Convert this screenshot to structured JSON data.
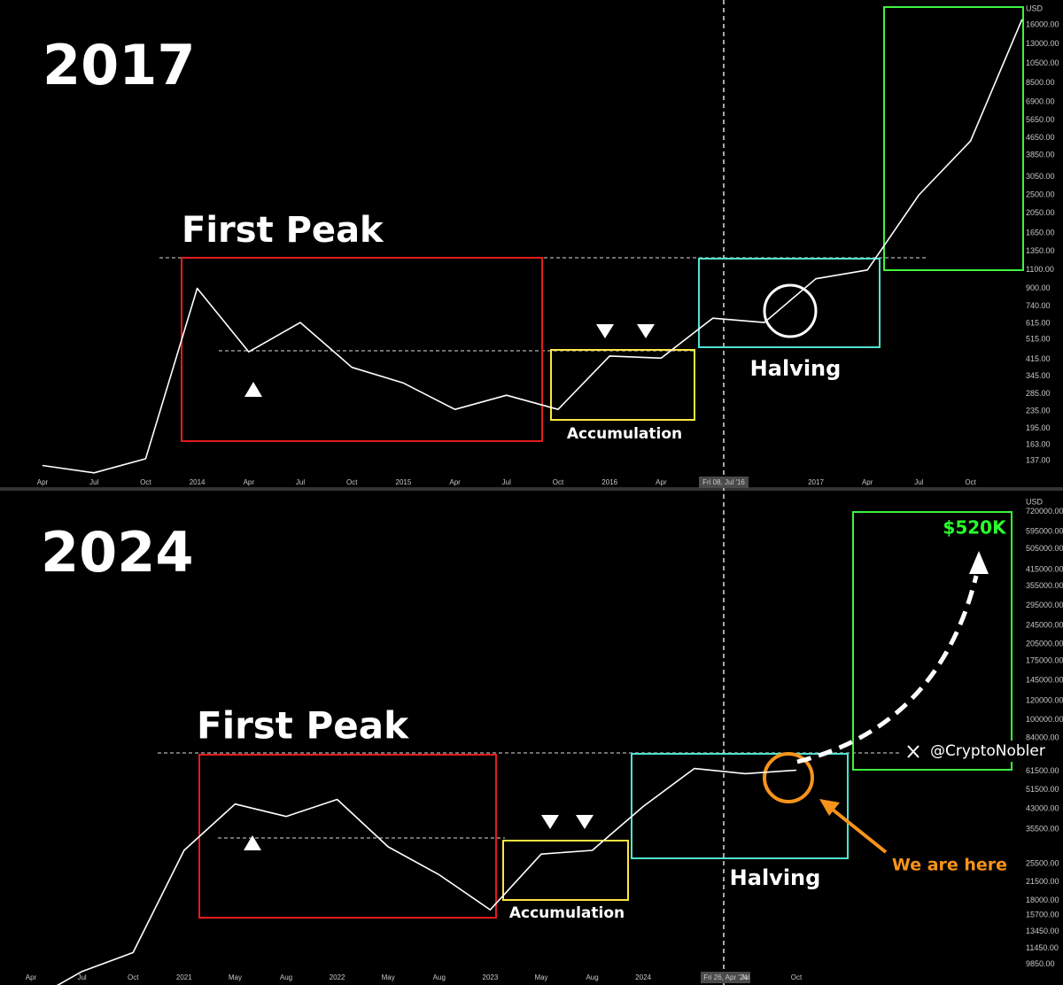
{
  "chart_data": [
    {
      "type": "line",
      "title": "2017",
      "annotations": [
        "First Peak",
        "Accumulation",
        "Halving"
      ],
      "crosshair_label": "Fri 08, Jul '16",
      "y_axis_label": "USD",
      "log_scale": true,
      "color": "#ffffff",
      "categories": [
        "Apr",
        "Jul",
        "Oct",
        "2014",
        "Apr",
        "Jul",
        "Oct",
        "2015",
        "Apr",
        "Jul",
        "Oct",
        "2016",
        "Apr",
        null,
        null,
        "2017",
        "Apr",
        "Jul",
        "Oct",
        null
      ],
      "values": [
        130,
        120,
        140,
        900,
        450,
        620,
        380,
        320,
        240,
        280,
        240,
        430,
        420,
        650,
        620,
        1000,
        1100,
        2500,
        4500,
        17000
      ],
      "ylim": [
        113,
        21000
      ],
      "yticks": [
        {
          "value": 16000,
          "label": "16000.00"
        },
        {
          "value": 13000,
          "label": "13000.00"
        },
        {
          "value": 10500,
          "label": "10500.00"
        },
        {
          "value": 8500,
          "label": "8500.00"
        },
        {
          "value": 6900,
          "label": "6900.00"
        },
        {
          "value": 5650,
          "label": "5650.00"
        },
        {
          "value": 4650,
          "label": "4650.00"
        },
        {
          "value": 3850,
          "label": "3850.00"
        },
        {
          "value": 3050,
          "label": "3050.00"
        },
        {
          "value": 2500,
          "label": "2500.00"
        },
        {
          "value": 2050,
          "label": "2050.00"
        },
        {
          "value": 1650,
          "label": "1650.00"
        },
        {
          "value": 1350,
          "label": "1350.00"
        },
        {
          "value": 1100,
          "label": "1100.00"
        },
        {
          "value": 900,
          "label": "900.00"
        },
        {
          "value": 740,
          "label": "740.00"
        },
        {
          "value": 615,
          "label": "615.00"
        },
        {
          "value": 515,
          "label": "515.00"
        },
        {
          "value": 415,
          "label": "415.00"
        },
        {
          "value": 345,
          "label": "345.00"
        },
        {
          "value": 285,
          "label": "285.00"
        },
        {
          "value": 235,
          "label": "235.00"
        },
        {
          "value": 195,
          "label": "195.00"
        },
        {
          "value": 163,
          "label": "163.00"
        },
        {
          "value": 137,
          "label": "137.00"
        }
      ]
    },
    {
      "type": "line",
      "title": "2024",
      "annotations": [
        "First Peak",
        "Accumulation",
        "Halving",
        "$520K",
        "We are here",
        "@CryptoNobler"
      ],
      "crosshair_label": "Fri 26, Apr '24",
      "y_axis_label": "USD",
      "log_scale": true,
      "color": "#ffffff",
      "categories": [
        "Apr",
        "Jul",
        "Oct",
        "2021",
        "May",
        "Aug",
        "2022",
        "May",
        "Aug",
        "2023",
        "May",
        "Aug",
        "2024",
        null,
        "Jul",
        "Oct"
      ],
      "values": [
        7000,
        9200,
        11000,
        29000,
        45000,
        40000,
        47000,
        30000,
        23000,
        16500,
        28000,
        29000,
        44000,
        63000,
        60000,
        62000
      ],
      "ylim": [
        9100,
        800000
      ],
      "yticks": [
        {
          "value": 720000,
          "label": "720000.00"
        },
        {
          "value": 595000,
          "label": "595000.00"
        },
        {
          "value": 505000,
          "label": "505000.00"
        },
        {
          "value": 415000,
          "label": "415000.00"
        },
        {
          "value": 355000,
          "label": "355000.00"
        },
        {
          "value": 295000,
          "label": "295000.00"
        },
        {
          "value": 245000,
          "label": "245000.00"
        },
        {
          "value": 205000,
          "label": "205000.00"
        },
        {
          "value": 175000,
          "label": "175000.00"
        },
        {
          "value": 145000,
          "label": "145000.00"
        },
        {
          "value": 120000,
          "label": "120000.00"
        },
        {
          "value": 100000,
          "label": "100000.00"
        },
        {
          "value": 84000,
          "label": "84000.00"
        },
        {
          "value": 61500,
          "label": "61500.00"
        },
        {
          "value": 51500,
          "label": "51500.00"
        },
        {
          "value": 43000,
          "label": "43000.00"
        },
        {
          "value": 35500,
          "label": "35500.00"
        },
        {
          "value": 25500,
          "label": "25500.00"
        },
        {
          "value": 21500,
          "label": "21500.00"
        },
        {
          "value": 18000,
          "label": "18000.00"
        },
        {
          "value": 15700,
          "label": "15700.00"
        },
        {
          "value": 13450,
          "label": "13450.00"
        },
        {
          "value": 11450,
          "label": "11450.00"
        },
        {
          "value": 9850,
          "label": "9850.00"
        }
      ]
    }
  ]
}
